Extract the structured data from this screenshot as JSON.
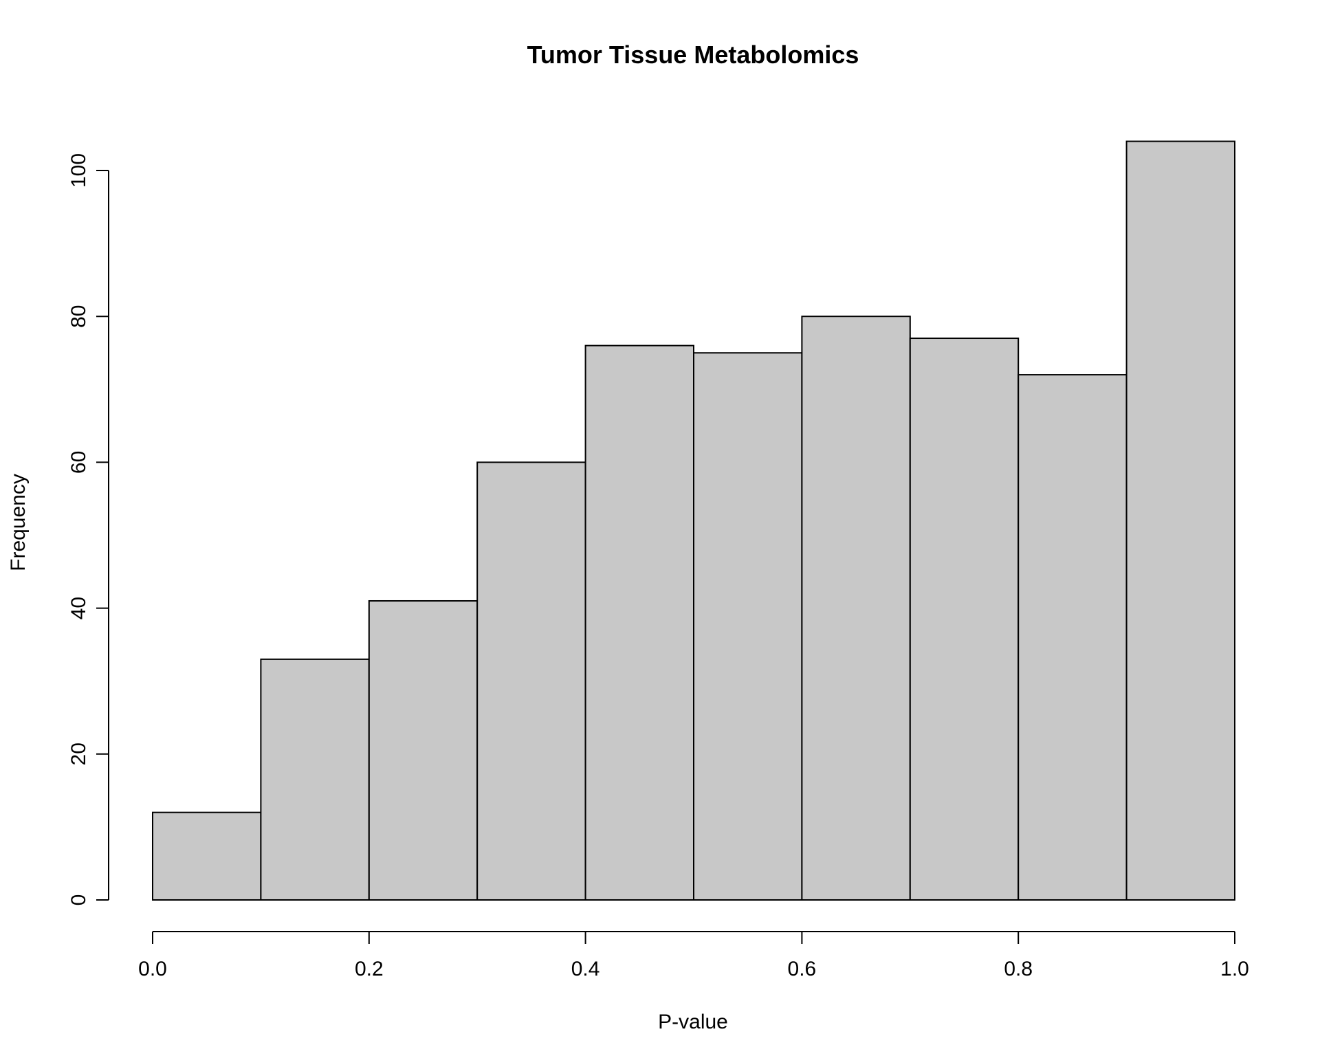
{
  "chart_data": {
    "type": "bar",
    "title": "Tumor Tissue Metabolomics",
    "xlabel": "P-value",
    "ylabel": "Frequency",
    "bin_edges": [
      0.0,
      0.1,
      0.2,
      0.3,
      0.4,
      0.5,
      0.6,
      0.7,
      0.8,
      0.9,
      1.0
    ],
    "values": [
      12,
      33,
      41,
      60,
      76,
      75,
      80,
      77,
      72,
      104
    ],
    "x_ticks": [
      "0.0",
      "0.2",
      "0.4",
      "0.6",
      "0.8",
      "1.0"
    ],
    "y_ticks": [
      "0",
      "20",
      "40",
      "60",
      "80",
      "100"
    ],
    "xlim": [
      0,
      1
    ],
    "ylim": [
      0,
      104
    ],
    "grid": false,
    "bar_color": "#c8c8c8",
    "edge_color": "#000000"
  }
}
